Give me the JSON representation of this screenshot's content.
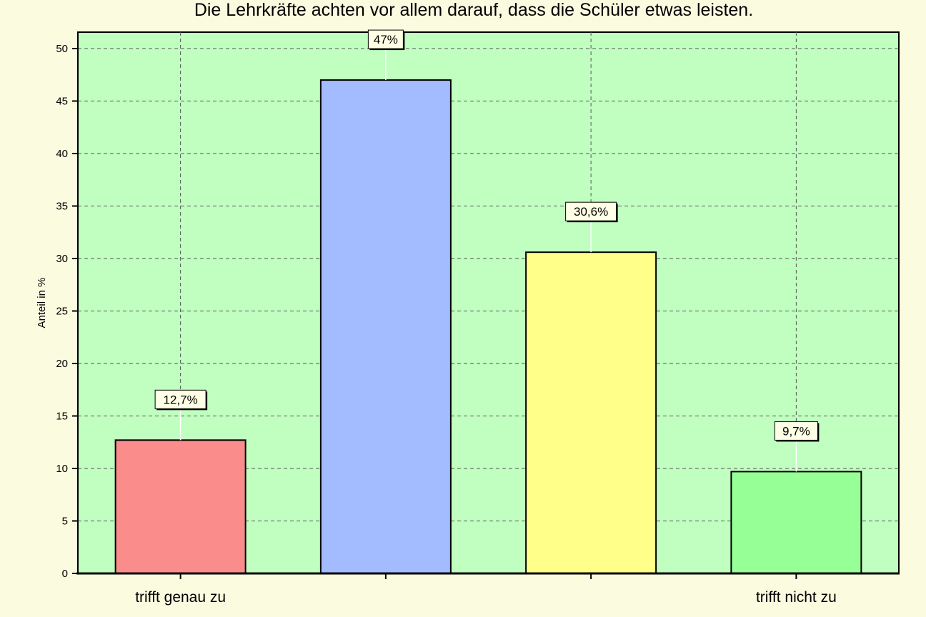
{
  "chart_data": {
    "type": "bar",
    "title": "Die Lehrkräfte achten vor allem darauf, dass die Schüler etwas leisten.",
    "xlabel": "",
    "ylabel": "Anteil in %",
    "ylim": [
      0,
      52
    ],
    "yticks": [
      0,
      5,
      10,
      15,
      20,
      25,
      30,
      35,
      40,
      45,
      50
    ],
    "grid": true,
    "categories": [
      "trifft genau zu",
      "",
      "",
      "trifft nicht zu"
    ],
    "values": [
      12.7,
      47,
      30.6,
      9.7
    ],
    "data_labels": [
      "12,7%",
      "47%",
      "30,6%",
      "9,7%"
    ],
    "colors": [
      "#fa8c8c",
      "#a2bcff",
      "#ffff8a",
      "#96ff96"
    ],
    "plot_background": "#c0ffc0",
    "page_background": "#fbfbe0"
  }
}
